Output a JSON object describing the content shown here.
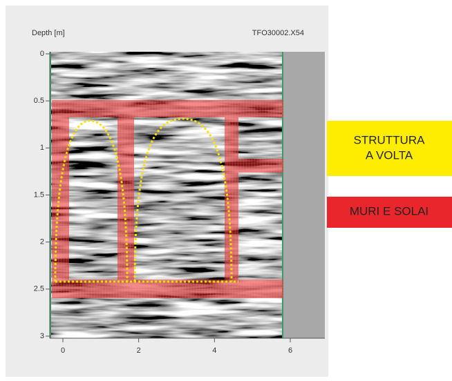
{
  "header": {
    "axis_label": "Depth [m]",
    "file_name": "TFO30002.X54"
  },
  "y_axis": {
    "ticks": [
      0,
      0.5,
      1,
      1.5,
      2,
      2.5,
      3
    ]
  },
  "x_axis": {
    "ticks": [
      0,
      2,
      4,
      6
    ]
  },
  "legend": [
    {
      "lines": [
        "STRUTTURA",
        "A VOLTA"
      ]
    },
    {
      "lines": [
        "MURI E SOLAI"
      ]
    }
  ]
}
